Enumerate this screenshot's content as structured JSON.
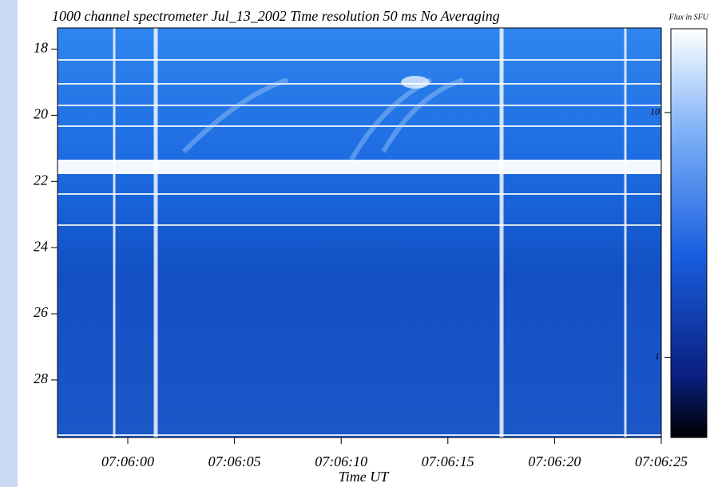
{
  "chart_data": {
    "type": "spectrogram",
    "title": "1000 channel spectrometer  Jul_13_2002  Time resolution  50 ms     No  Averaging",
    "xlabel": "Time UT",
    "xticks": [
      "07:06:00",
      "07:06:05",
      "07:06:10",
      "07:06:15",
      "07:06:20",
      "07:06:25"
    ],
    "ylim": [
      17.36,
      29.74
    ],
    "yticks": [
      18,
      20,
      22,
      24,
      26,
      28
    ],
    "colorbar": {
      "label": "Flux in SFU",
      "log": true,
      "clim": [
        0.47,
        22
      ],
      "ticks": [
        1,
        10
      ]
    }
  }
}
